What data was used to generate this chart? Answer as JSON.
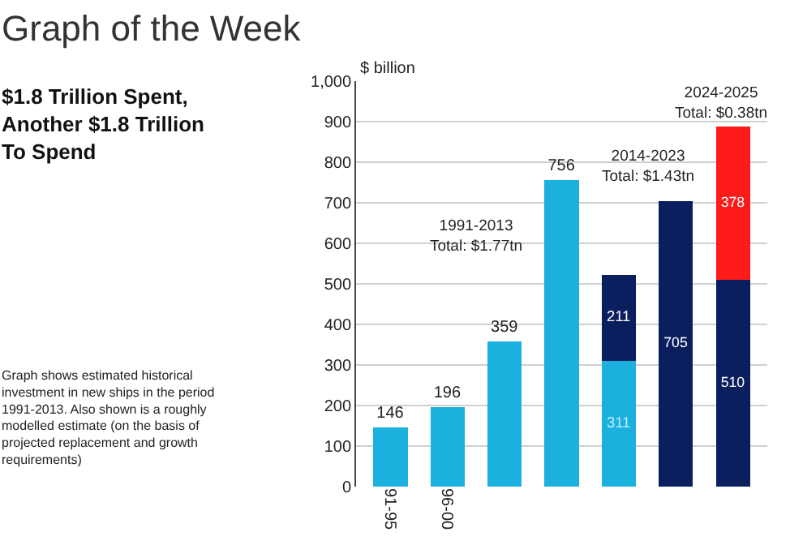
{
  "chart_data": {
    "type": "bar",
    "stacked": true,
    "title": "Graph of the Week",
    "subtitle": "$1.8 Trillion Spent, Another $1.8 Trillion To Spend",
    "ylabel": "$ billion",
    "categories": [
      "91-95",
      "96-00",
      null,
      null,
      null,
      null,
      null
    ],
    "series": [
      {
        "color": "#1cb0de",
        "values": [
          146,
          196,
          359,
          756,
          311,
          null,
          null
        ]
      },
      {
        "color": "#0b1f5e",
        "values": [
          null,
          null,
          null,
          null,
          211,
          705,
          510
        ]
      },
      {
        "color": "#ff1a1a",
        "values": [
          null,
          null,
          null,
          null,
          null,
          null,
          378
        ]
      }
    ],
    "ylim": [
      0,
      1000
    ],
    "yticks": [
      0,
      100,
      200,
      300,
      400,
      500,
      600,
      700,
      800,
      900,
      {
        "value": 1000,
        "label": "1,000"
      }
    ],
    "grid": "y",
    "data_labels": true,
    "annotations": [
      "1991-2013\nTotal: $1.77tn",
      "2014-2023\nTotal: $1.43tn",
      "2024-2025\nTotal: $0.38tn",
      "Graph shows estimated historical investment in new ships in the period 1991-2013. Also shown is a roughly modelled estimate (on the basis of projected replacement and growth requirements)"
    ]
  }
}
